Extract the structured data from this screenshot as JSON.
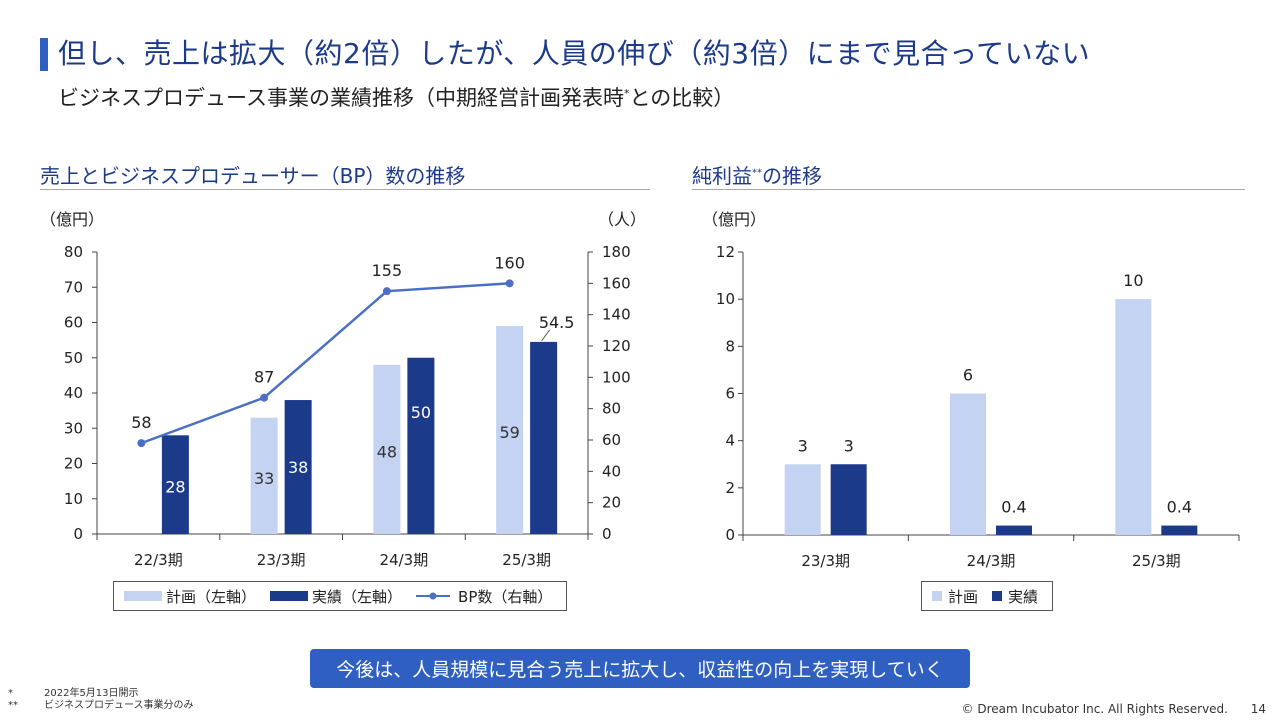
{
  "header": {
    "title": "但し、売上は拡大（約2倍）したが、人員の伸び（約3倍）にまで見合っていない",
    "subtitle_main": "ビジネスプロデュース事業の業績推移（中期経営計画発表時",
    "subtitle_mark": "*",
    "subtitle_tail": "との比較）"
  },
  "colors": {
    "plan": "#c5d3f2",
    "actual": "#1c3a8a",
    "line": "#4a6fc4",
    "accent": "#2f5fc0"
  },
  "chart_data": [
    {
      "type": "bar",
      "title": "売上とビジネスプロデューサー（BP）数の推移",
      "ylabel_left": "（億円）",
      "ylabel_right": "（人）",
      "categories": [
        "22/3期",
        "23/3期",
        "24/3期",
        "25/3期"
      ],
      "ylim_left": [
        0,
        80
      ],
      "yticks_left": [
        0,
        10,
        20,
        30,
        40,
        50,
        60,
        70,
        80
      ],
      "ylim_right": [
        0,
        180
      ],
      "yticks_right": [
        0,
        20,
        40,
        60,
        80,
        100,
        120,
        140,
        160,
        180
      ],
      "series": [
        {
          "name": "計画（左軸）",
          "kind": "bar",
          "axis": "left",
          "values": [
            null,
            33,
            48,
            59
          ],
          "labels": [
            null,
            "33",
            "48",
            "59"
          ]
        },
        {
          "name": "実績（左軸）",
          "kind": "bar",
          "axis": "left",
          "values": [
            28,
            38,
            50,
            54.5
          ],
          "labels": [
            "28",
            "38",
            "50",
            "54.5"
          ]
        },
        {
          "name": "BP数（右軸）",
          "kind": "line",
          "axis": "right",
          "values": [
            58,
            87,
            155,
            160
          ],
          "labels": [
            "58",
            "87",
            "155",
            "160"
          ]
        }
      ]
    },
    {
      "type": "bar",
      "title_main": "純利益",
      "title_mark": "**",
      "title_tail": "の推移",
      "ylabel": "（億円）",
      "categories": [
        "23/3期",
        "24/3期",
        "25/3期"
      ],
      "ylim": [
        0,
        12
      ],
      "yticks": [
        0,
        2,
        4,
        6,
        8,
        10,
        12
      ],
      "series": [
        {
          "name": "計画",
          "values": [
            3,
            6,
            10
          ],
          "labels": [
            "3",
            "6",
            "10"
          ]
        },
        {
          "name": "実績",
          "values": [
            3,
            0.4,
            0.4
          ],
          "labels": [
            "3",
            "0.4",
            "0.4"
          ]
        }
      ]
    }
  ],
  "callout": "今後は、人員規模に見合う売上に拡大し、収益性の向上を実現していく",
  "footnotes": [
    {
      "mark": "*",
      "text": "2022年5月13日開示"
    },
    {
      "mark": "**",
      "text": "ビジネスプロデュース事業分のみ"
    }
  ],
  "copyright": "© Dream Incubator Inc. All Rights Reserved.",
  "page_number": "14"
}
